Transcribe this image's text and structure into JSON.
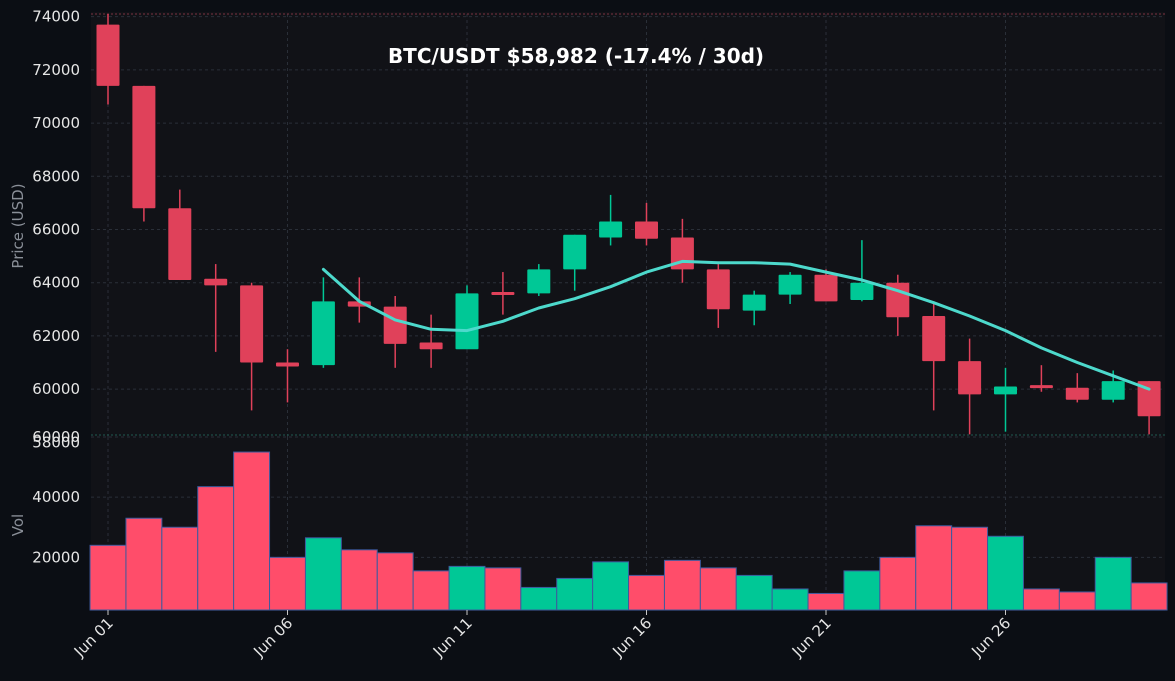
{
  "colors": {
    "background": "#0b0e14",
    "panel": "#111217",
    "up": "#00c896",
    "down": "#e0415a",
    "volume_down": "#ff4d6a",
    "sma": "#4dd9cc",
    "grid": "#2a2f38"
  },
  "chart_data": [
    {
      "type": "candlestick",
      "title": "BTC/USDT   $58,982   (-17.4% / 30d)",
      "ylabel": "Price (USD)",
      "ylim": [
        58200,
        74100
      ],
      "yticks": [
        "58000",
        "60000",
        "62000",
        "64000",
        "66000",
        "68000",
        "70000",
        "72000",
        "74000"
      ],
      "grid": true,
      "candles": [
        {
          "d": 1,
          "o": 73700,
          "h": 74100,
          "l": 70700,
          "c": 71400
        },
        {
          "d": 2,
          "o": 71400,
          "h": 71400,
          "l": 66300,
          "c": 66800
        },
        {
          "d": 3,
          "o": 66800,
          "h": 67500,
          "l": 64100,
          "c": 64100
        },
        {
          "d": 4,
          "o": 64150,
          "h": 64700,
          "l": 61400,
          "c": 63900
        },
        {
          "d": 5,
          "o": 63900,
          "h": 64000,
          "l": 59200,
          "c": 61000
        },
        {
          "d": 6,
          "o": 61000,
          "h": 61500,
          "l": 59500,
          "c": 60850
        },
        {
          "d": 7,
          "o": 60900,
          "h": 64200,
          "l": 60800,
          "c": 63300
        },
        {
          "d": 8,
          "o": 63300,
          "h": 64200,
          "l": 62500,
          "c": 63100
        },
        {
          "d": 9,
          "o": 63100,
          "h": 63500,
          "l": 60800,
          "c": 61700
        },
        {
          "d": 10,
          "o": 61750,
          "h": 62800,
          "l": 60800,
          "c": 61500
        },
        {
          "d": 11,
          "o": 61500,
          "h": 63900,
          "l": 61500,
          "c": 63600
        },
        {
          "d": 12,
          "o": 63650,
          "h": 64400,
          "l": 62800,
          "c": 63550
        },
        {
          "d": 13,
          "o": 63600,
          "h": 64700,
          "l": 63500,
          "c": 64500
        },
        {
          "d": 14,
          "o": 64500,
          "h": 65800,
          "l": 63700,
          "c": 65800
        },
        {
          "d": 15,
          "o": 65700,
          "h": 67300,
          "l": 65400,
          "c": 66300
        },
        {
          "d": 16,
          "o": 66300,
          "h": 67000,
          "l": 65400,
          "c": 65650
        },
        {
          "d": 17,
          "o": 65700,
          "h": 66400,
          "l": 64000,
          "c": 64500
        },
        {
          "d": 18,
          "o": 64500,
          "h": 64700,
          "l": 62300,
          "c": 63000
        },
        {
          "d": 19,
          "o": 62950,
          "h": 63700,
          "l": 62400,
          "c": 63550
        },
        {
          "d": 20,
          "o": 63550,
          "h": 64400,
          "l": 63200,
          "c": 64300
        },
        {
          "d": 21,
          "o": 64300,
          "h": 64500,
          "l": 63300,
          "c": 63300
        },
        {
          "d": 22,
          "o": 63350,
          "h": 65600,
          "l": 63300,
          "c": 64000
        },
        {
          "d": 23,
          "o": 64000,
          "h": 64300,
          "l": 62000,
          "c": 62700
        },
        {
          "d": 24,
          "o": 62750,
          "h": 63300,
          "l": 59200,
          "c": 61050
        },
        {
          "d": 25,
          "o": 61050,
          "h": 61900,
          "l": 58300,
          "c": 59800
        },
        {
          "d": 26,
          "o": 59800,
          "h": 60800,
          "l": 58400,
          "c": 60100
        },
        {
          "d": 27,
          "o": 60150,
          "h": 60900,
          "l": 59900,
          "c": 60050
        },
        {
          "d": 28,
          "o": 60050,
          "h": 60600,
          "l": 59500,
          "c": 59600
        },
        {
          "d": 29,
          "o": 59600,
          "h": 60700,
          "l": 59500,
          "c": 60300
        },
        {
          "d": 30,
          "o": 60300,
          "h": 60300,
          "l": 58300,
          "c": 58982
        }
      ],
      "sma": {
        "start_day": 7,
        "values": [
          64500,
          63300,
          62600,
          62250,
          62200,
          62550,
          63050,
          63400,
          63850,
          64400,
          64800,
          64750,
          64750,
          64700,
          64400,
          64100,
          63700,
          63250,
          62750,
          62200,
          61550,
          61000,
          60500,
          60000
        ]
      }
    },
    {
      "type": "bar",
      "ylabel": "Vol",
      "ylim": [
        2500,
        60000
      ],
      "yticks": [
        "20000",
        "40000",
        "60000"
      ],
      "grid": true,
      "volumes": [
        24000,
        33000,
        30000,
        43500,
        55000,
        20000,
        26500,
        22500,
        21500,
        15500,
        17000,
        16500,
        10000,
        13000,
        18500,
        14000,
        19000,
        16500,
        14000,
        9500,
        8000,
        15500,
        20000,
        30500,
        30000,
        27000,
        9500,
        8500,
        20000,
        11500
      ]
    }
  ],
  "x_axis": {
    "tick_labels": [
      {
        "d": 1,
        "label": "Jun 01"
      },
      {
        "d": 6,
        "label": "Jun 06"
      },
      {
        "d": 11,
        "label": "Jun 11"
      },
      {
        "d": 16,
        "label": "Jun 16"
      },
      {
        "d": 21,
        "label": "Jun 21"
      },
      {
        "d": 26,
        "label": "Jun 26"
      }
    ]
  }
}
